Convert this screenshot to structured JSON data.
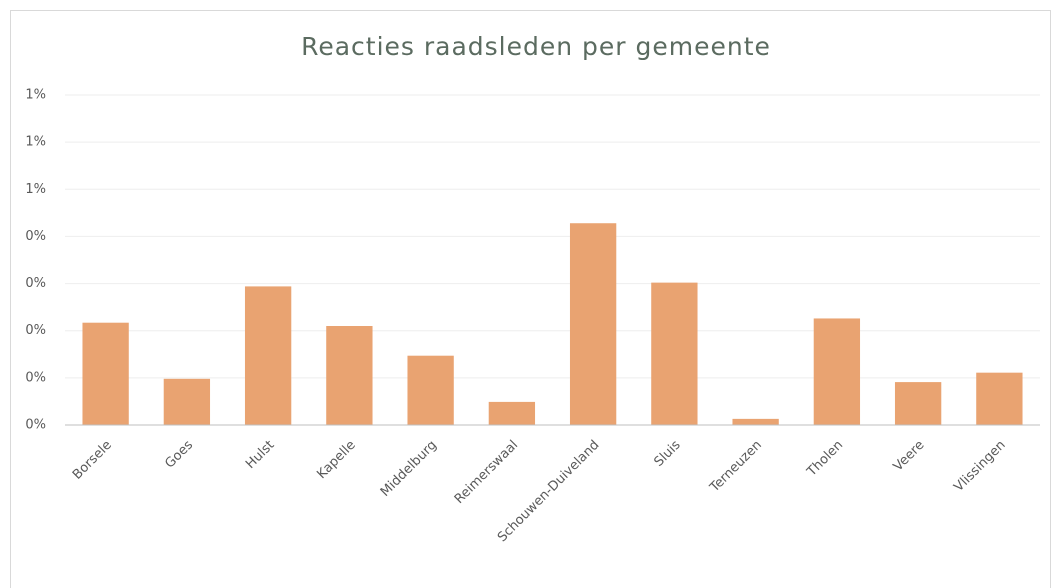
{
  "chart_data": {
    "type": "bar",
    "title": "Reacties raadsleden per gemeente",
    "categories": [
      "Borsele",
      "Goes",
      "Hulst",
      "Kapelle",
      "Middelburg",
      "Reimerswaal",
      "Schouwen-Duiveland",
      "Sluis",
      "Terneuzen",
      "Tholen",
      "Veere",
      "Vlissingen"
    ],
    "values": [
      0.217,
      0.098,
      0.294,
      0.21,
      0.147,
      0.049,
      0.428,
      0.302,
      0.013,
      0.226,
      0.091,
      0.111
    ],
    "color": "#e9a371",
    "ylim": [
      0,
      0.7
    ],
    "yticks": [
      {
        "value": 0,
        "label": "0%"
      },
      {
        "value": 0.1,
        "label": "0%"
      },
      {
        "value": 0.2,
        "label": "0%"
      },
      {
        "value": 0.3,
        "label": "0%"
      },
      {
        "value": 0.4,
        "label": "0%"
      },
      {
        "value": 0.5,
        "label": "1%"
      },
      {
        "value": 0.6,
        "label": "1%"
      },
      {
        "value": 0.7,
        "label": "1%"
      }
    ],
    "grid": true
  }
}
